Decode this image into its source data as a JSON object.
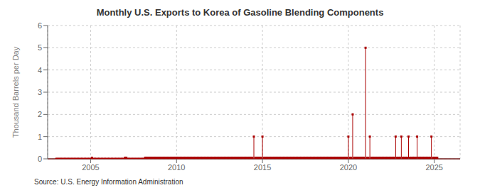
{
  "chart_data": {
    "type": "stem",
    "title": "Monthly U.S. Exports to Korea of Gasoline Blending Components",
    "ylabel": "Thousand Barrels per Day",
    "annotations": [
      "Source: U.S. Energy Information Administration"
    ],
    "color": "#aa0000",
    "grid": true,
    "xlim": [
      2002.5,
      2026.5
    ],
    "xticks": [
      2005,
      2010,
      2015,
      2020,
      2025
    ],
    "ylim": [
      0,
      6
    ],
    "yticks": [
      0,
      1,
      2,
      3,
      4,
      5,
      6
    ],
    "x": [
      2003.0,
      2003.08,
      2003.17,
      2003.25,
      2003.33,
      2003.42,
      2003.5,
      2003.58,
      2003.67,
      2003.75,
      2003.83,
      2003.92,
      2004.0,
      2004.08,
      2004.17,
      2004.25,
      2004.33,
      2004.42,
      2004.5,
      2004.58,
      2004.67,
      2004.75,
      2004.83,
      2004.92,
      2005.0,
      2005.08,
      2005.17,
      2005.25,
      2005.33,
      2005.42,
      2005.5,
      2005.58,
      2005.67,
      2005.75,
      2005.83,
      2005.92,
      2006.0,
      2006.08,
      2006.17,
      2006.25,
      2006.33,
      2006.42,
      2006.5,
      2006.58,
      2006.67,
      2006.75,
      2006.83,
      2006.92,
      2007.0,
      2007.08,
      2007.17,
      2007.25,
      2007.33,
      2007.42,
      2007.5,
      2007.58,
      2007.67,
      2007.75,
      2007.83,
      2007.92,
      2008.0,
      2008.08,
      2008.17,
      2008.25,
      2008.33,
      2008.42,
      2008.5,
      2008.58,
      2008.67,
      2008.75,
      2008.83,
      2008.92,
      2009.0,
      2009.08,
      2009.17,
      2009.25,
      2009.33,
      2009.42,
      2009.5,
      2009.58,
      2009.67,
      2009.75,
      2009.83,
      2009.92,
      2010.0,
      2010.08,
      2010.17,
      2010.25,
      2010.33,
      2010.42,
      2010.5,
      2010.58,
      2010.67,
      2010.75,
      2010.83,
      2010.92,
      2011.0,
      2011.08,
      2011.17,
      2011.25,
      2011.33,
      2011.42,
      2011.5,
      2011.58,
      2011.67,
      2011.75,
      2011.83,
      2011.92,
      2012.0,
      2012.08,
      2012.17,
      2012.25,
      2012.33,
      2012.42,
      2012.5,
      2012.58,
      2012.67,
      2012.75,
      2012.83,
      2012.92,
      2013.0,
      2013.08,
      2013.17,
      2013.25,
      2013.33,
      2013.42,
      2013.5,
      2013.58,
      2013.67,
      2013.75,
      2013.83,
      2013.92,
      2014.0,
      2014.08,
      2014.17,
      2014.25,
      2014.33,
      2014.42,
      2014.5,
      2014.58,
      2014.67,
      2014.75,
      2014.83,
      2014.92,
      2015.0,
      2015.08,
      2015.17,
      2015.25,
      2015.33,
      2015.42,
      2015.5,
      2015.58,
      2015.67,
      2015.75,
      2015.83,
      2015.92,
      2016.0,
      2016.08,
      2016.17,
      2016.25,
      2016.33,
      2016.42,
      2016.5,
      2016.58,
      2016.67,
      2016.75,
      2016.83,
      2016.92,
      2017.0,
      2017.08,
      2017.17,
      2017.25,
      2017.33,
      2017.42,
      2017.5,
      2017.58,
      2017.67,
      2017.75,
      2017.83,
      2017.92,
      2018.0,
      2018.08,
      2018.17,
      2018.25,
      2018.33,
      2018.42,
      2018.5,
      2018.58,
      2018.67,
      2018.75,
      2018.83,
      2018.92,
      2019.0,
      2019.08,
      2019.17,
      2019.25,
      2019.33,
      2019.42,
      2019.5,
      2019.58,
      2019.67,
      2019.75,
      2019.83,
      2019.92,
      2020.0,
      2020.08,
      2020.17,
      2020.25,
      2020.33,
      2020.42,
      2020.5,
      2020.58,
      2020.67,
      2020.75,
      2020.83,
      2020.92,
      2021.0,
      2021.08,
      2021.17,
      2021.25,
      2021.33,
      2021.42,
      2021.5,
      2021.58,
      2021.67,
      2021.75,
      2021.83,
      2021.92,
      2022.0,
      2022.08,
      2022.17,
      2022.25,
      2022.33,
      2022.42,
      2022.5,
      2022.58,
      2022.67,
      2022.75,
      2022.83,
      2022.92,
      2023.0,
      2023.08,
      2023.17,
      2023.25,
      2023.33,
      2023.42,
      2023.5,
      2023.58,
      2023.67,
      2023.75,
      2023.83,
      2023.92,
      2024.0,
      2024.08,
      2024.17,
      2024.25,
      2024.33,
      2024.42,
      2024.5,
      2024.58,
      2024.67,
      2024.75,
      2024.83,
      2024.92,
      2025.0,
      2025.08,
      2025.17
    ],
    "values": [
      0,
      0,
      0,
      0,
      0,
      0,
      0,
      0,
      0,
      0,
      0,
      0,
      0,
      0,
      0,
      0,
      0,
      0,
      0,
      0,
      0,
      0,
      0,
      0,
      0,
      0.05,
      0,
      0,
      0,
      0,
      0,
      0,
      0,
      0,
      0,
      0,
      0,
      0,
      0,
      0,
      0,
      0,
      0,
      0,
      0,
      0,
      0,
      0,
      0.05,
      0.05,
      0,
      0,
      0,
      0,
      0,
      0,
      0,
      0,
      0,
      0,
      0,
      0,
      0.05,
      0.05,
      0.05,
      0.05,
      0.05,
      0.05,
      0.05,
      0.05,
      0.05,
      0.05,
      0.05,
      0.05,
      0.05,
      0.05,
      0.05,
      0.05,
      0.05,
      0.05,
      0.05,
      0.05,
      0.05,
      0.05,
      0.05,
      0.05,
      0.05,
      0.05,
      0.05,
      0.05,
      0.05,
      0.05,
      0.05,
      0.05,
      0.05,
      0.05,
      0.05,
      0.05,
      0.05,
      0.05,
      0.05,
      0.05,
      0.05,
      0.05,
      0.05,
      0.05,
      0.05,
      0.05,
      0.05,
      0.05,
      0.05,
      0.05,
      0.05,
      0.05,
      0.05,
      0.05,
      0.05,
      0.05,
      0.05,
      0.05,
      0.05,
      0.05,
      0.05,
      0.05,
      0.05,
      0.05,
      0.05,
      0.05,
      0.05,
      0.05,
      0.05,
      0.05,
      0.05,
      0.05,
      0.05,
      0.05,
      0.05,
      0.05,
      1.0,
      0.05,
      0.05,
      0.05,
      0.05,
      0.05,
      1.0,
      0.05,
      0.05,
      0.05,
      0.05,
      0.05,
      0.05,
      0.05,
      0.05,
      0.05,
      0.05,
      0.05,
      0.05,
      0.05,
      0.05,
      0.05,
      0.05,
      0.05,
      0.05,
      0.05,
      0.05,
      0.05,
      0.05,
      0.05,
      0.05,
      0.05,
      0.05,
      0.05,
      0.05,
      0.05,
      0.05,
      0.05,
      0.05,
      0.05,
      0.05,
      0.05,
      0.05,
      0.05,
      0.05,
      0.05,
      0.05,
      0.05,
      0.05,
      0.05,
      0.05,
      0.05,
      0.05,
      0.05,
      0.05,
      0.05,
      0.05,
      0.05,
      0.05,
      0.05,
      0.05,
      0.05,
      0.05,
      0.05,
      0.05,
      0.05,
      1.0,
      0.05,
      0.05,
      2.0,
      0.05,
      0.05,
      0.05,
      0.05,
      0.05,
      0.05,
      0.05,
      0.05,
      5.0,
      0.05,
      0.05,
      1.0,
      0.05,
      0.05,
      0.05,
      0.05,
      0.05,
      0.05,
      0.05,
      0.05,
      0.05,
      0.05,
      0.05,
      0.05,
      0.05,
      0.05,
      0.05,
      0.05,
      0.05,
      1.0,
      0.05,
      0.05,
      0.05,
      1.0,
      0.05,
      0.05,
      0.05,
      0.05,
      1.0,
      0.05,
      0.05,
      0.05,
      0.05,
      0.05,
      1.0,
      0.05,
      0.05,
      0.05,
      0.05,
      0.05,
      0.05,
      0.05,
      0.05,
      0.05,
      1.0,
      0.05,
      0.05,
      0.05,
      0.05
    ]
  }
}
